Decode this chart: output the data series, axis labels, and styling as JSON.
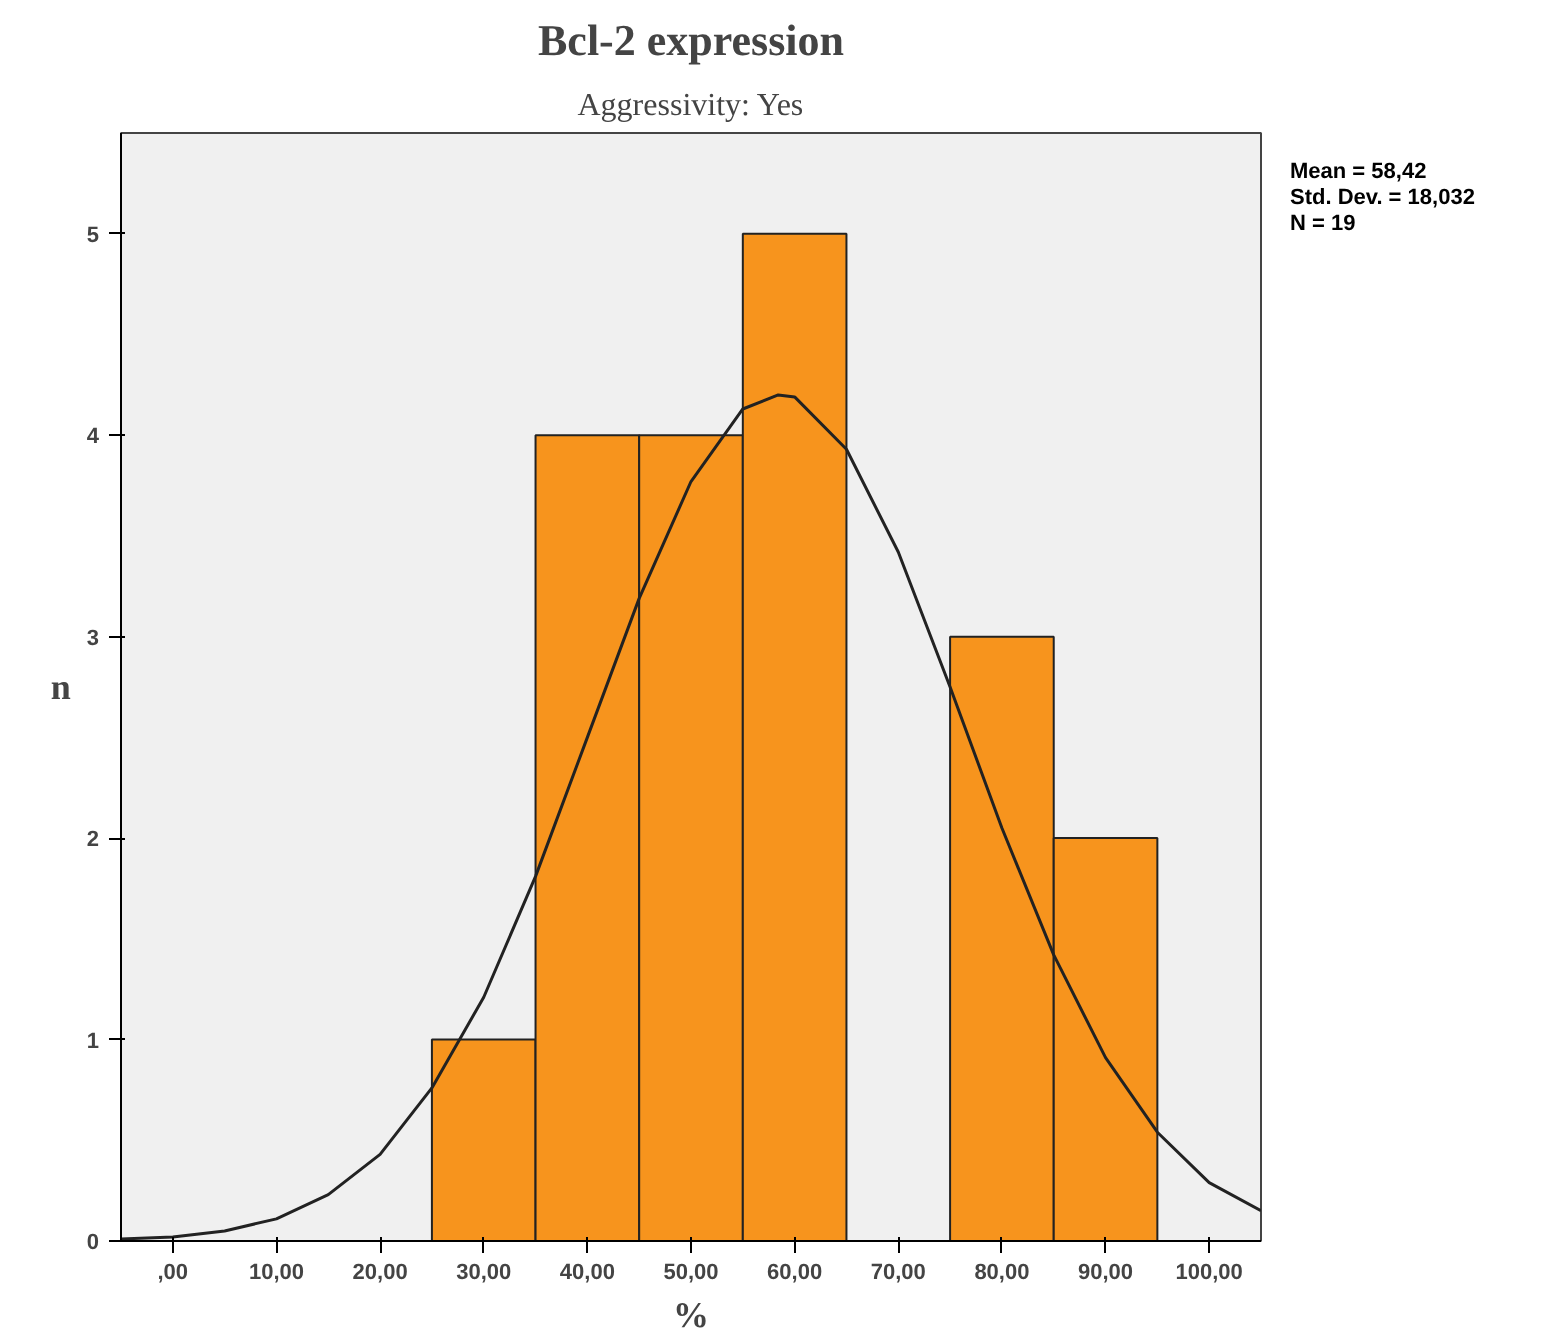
{
  "chart_data": {
    "type": "histogram",
    "title": "Bcl-2 expression",
    "subtitle": "Aggressivity: Yes",
    "xlabel": "%",
    "ylabel": "n",
    "bins": [
      25,
      35,
      45,
      55,
      65,
      75,
      85,
      95
    ],
    "values": [
      1,
      4,
      4,
      5,
      0,
      3,
      2
    ],
    "color": "#f7941d",
    "series": [
      {
        "type": "line",
        "color": "#222222",
        "x": [
          -5,
          0,
          5,
          10,
          15,
          20,
          25,
          30,
          35,
          40,
          45,
          50,
          55,
          58.42,
          60,
          65,
          70,
          75,
          80,
          85,
          90,
          95,
          100,
          105
        ],
        "values": [
          0.01,
          0.02,
          0.05,
          0.11,
          0.23,
          0.43,
          0.76,
          1.21,
          1.81,
          2.5,
          3.19,
          3.77,
          4.13,
          4.2,
          4.19,
          3.93,
          3.42,
          2.75,
          2.05,
          1.42,
          0.91,
          0.54,
          0.29,
          0.15
        ]
      }
    ],
    "xlim": [
      -5,
      105
    ],
    "ylim": [
      0,
      5.5
    ],
    "xticks": [
      {
        "value": 0,
        "label": ",00"
      },
      {
        "value": 10,
        "label": "10,00"
      },
      {
        "value": 20,
        "label": "20,00"
      },
      {
        "value": 30,
        "label": "30,00"
      },
      {
        "value": 40,
        "label": "40,00"
      },
      {
        "value": 50,
        "label": "50,00"
      },
      {
        "value": 60,
        "label": "60,00"
      },
      {
        "value": 70,
        "label": "70,00"
      },
      {
        "value": 80,
        "label": "80,00"
      },
      {
        "value": 90,
        "label": "90,00"
      },
      {
        "value": 100,
        "label": "100,00"
      }
    ],
    "yticks": [
      0,
      1,
      2,
      3,
      4,
      5
    ],
    "grid": false,
    "annotations": [
      "Mean = 58,42",
      "Std. Dev. = 18,032",
      "N = 19"
    ]
  }
}
